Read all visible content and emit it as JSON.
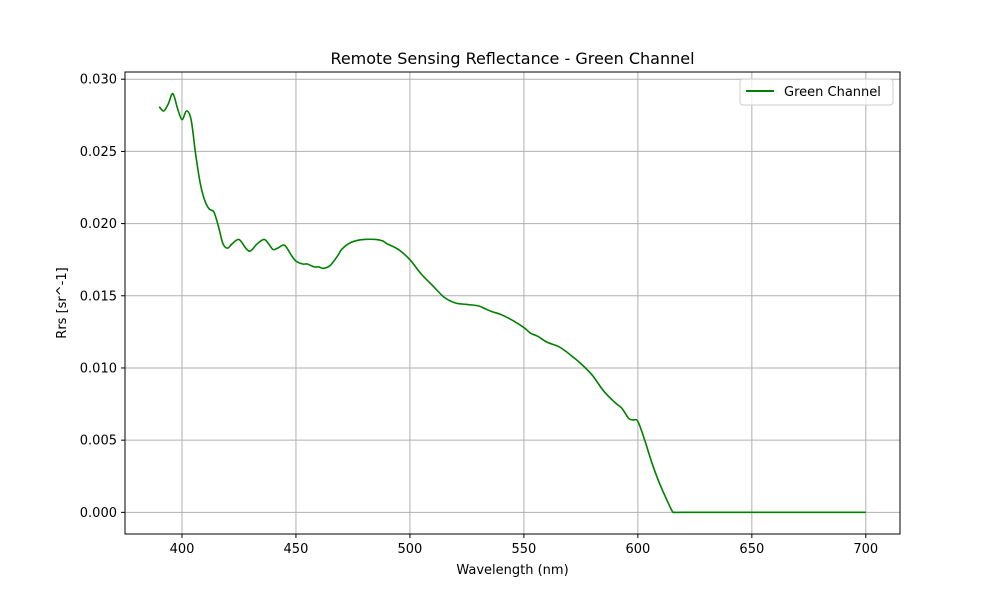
{
  "chart_data": {
    "type": "line",
    "title": "Remote Sensing Reflectance - Green Channel",
    "xlabel": "Wavelength (nm)",
    "ylabel": "Rrs [sr^-1]",
    "xlim": [
      375,
      715
    ],
    "ylim": [
      -0.0015,
      0.0305
    ],
    "xticks": [
      400,
      450,
      500,
      550,
      600,
      650,
      700
    ],
    "yticks": [
      0.0,
      0.005,
      0.01,
      0.015,
      0.02,
      0.025,
      0.03
    ],
    "xtick_labels": [
      "400",
      "450",
      "500",
      "550",
      "600",
      "650",
      "700"
    ],
    "ytick_labels": [
      "0.000",
      "0.005",
      "0.010",
      "0.015",
      "0.020",
      "0.025",
      "0.030"
    ],
    "grid": true,
    "legend_position": "top-right",
    "series": [
      {
        "name": "Green Channel",
        "color": "#008000",
        "x": [
          390,
          392,
          394,
          396,
          398,
          400,
          402,
          404,
          406,
          408,
          410,
          412,
          414,
          416,
          418,
          420,
          422,
          425,
          428,
          430,
          433,
          436,
          438,
          440,
          442,
          445,
          448,
          450,
          453,
          455,
          458,
          460,
          462,
          465,
          468,
          470,
          473,
          476,
          480,
          485,
          488,
          490,
          495,
          500,
          505,
          510,
          515,
          520,
          525,
          530,
          533,
          536,
          540,
          545,
          550,
          553,
          556,
          560,
          565,
          568,
          572,
          575,
          580,
          585,
          590,
          593,
          596,
          598,
          600,
          603,
          606,
          609,
          612,
          615,
          616,
          620,
          650,
          700
        ],
        "y": [
          0.0281,
          0.0278,
          0.0283,
          0.029,
          0.028,
          0.0272,
          0.0278,
          0.0272,
          0.0248,
          0.0228,
          0.0216,
          0.021,
          0.0208,
          0.0198,
          0.0186,
          0.0183,
          0.0186,
          0.0189,
          0.0183,
          0.0181,
          0.0186,
          0.0189,
          0.0186,
          0.0182,
          0.0183,
          0.0185,
          0.0178,
          0.0174,
          0.0172,
          0.0172,
          0.017,
          0.017,
          0.0169,
          0.0171,
          0.0177,
          0.0182,
          0.0186,
          0.0188,
          0.0189,
          0.0189,
          0.0188,
          0.0186,
          0.0182,
          0.0175,
          0.0165,
          0.0157,
          0.0149,
          0.0145,
          0.0144,
          0.0143,
          0.0141,
          0.0139,
          0.0137,
          0.0133,
          0.0128,
          0.0124,
          0.0122,
          0.0118,
          0.0115,
          0.0112,
          0.0107,
          0.0103,
          0.0095,
          0.0084,
          0.0076,
          0.0072,
          0.0065,
          0.0064,
          0.0063,
          0.005,
          0.0035,
          0.0022,
          0.0011,
          0.0001,
          0.0,
          0.0,
          0.0,
          0.0
        ]
      }
    ]
  }
}
